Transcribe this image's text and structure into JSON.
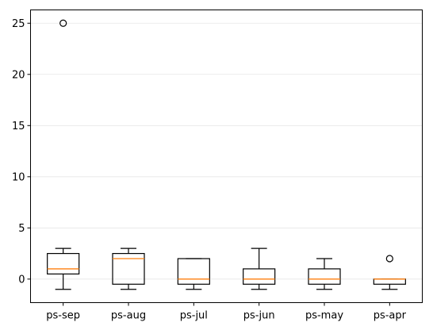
{
  "chart_data": {
    "type": "box",
    "title": "",
    "xlabel": "",
    "ylabel": "",
    "categories": [
      "ps-sep",
      "ps-aug",
      "ps-jul",
      "ps-jun",
      "ps-may",
      "ps-apr"
    ],
    "boxes": [
      {
        "name": "ps-sep",
        "whisker_low": -1,
        "q1": 0.5,
        "median": 1,
        "q3": 2.5,
        "whisker_high": 3,
        "fliers": [
          25
        ]
      },
      {
        "name": "ps-aug",
        "whisker_low": -1,
        "q1": -0.5,
        "median": 2,
        "q3": 2.5,
        "whisker_high": 3,
        "fliers": []
      },
      {
        "name": "ps-jul",
        "whisker_low": -1,
        "q1": -0.5,
        "median": 0,
        "q3": 2,
        "whisker_high": 2,
        "fliers": []
      },
      {
        "name": "ps-jun",
        "whisker_low": -1,
        "q1": -0.5,
        "median": 0,
        "q3": 1,
        "whisker_high": 3,
        "fliers": []
      },
      {
        "name": "ps-may",
        "whisker_low": -1,
        "q1": -0.5,
        "median": 0,
        "q3": 1,
        "whisker_high": 2,
        "fliers": []
      },
      {
        "name": "ps-apr",
        "whisker_low": -1,
        "q1": -0.5,
        "median": 0,
        "q3": 0,
        "whisker_high": 0,
        "fliers": [
          2
        ]
      }
    ],
    "ylim": [
      -2.3,
      26.3
    ],
    "yticks": [
      0,
      5,
      10,
      15,
      20,
      25
    ],
    "ytick_labels": [
      "0",
      "5",
      "10",
      "15",
      "20",
      "25"
    ],
    "grid": "horizontal",
    "legend": "none",
    "colors": {
      "box": "#000000",
      "median": "#ff7f0e",
      "grid": "#e6e6e6"
    }
  }
}
